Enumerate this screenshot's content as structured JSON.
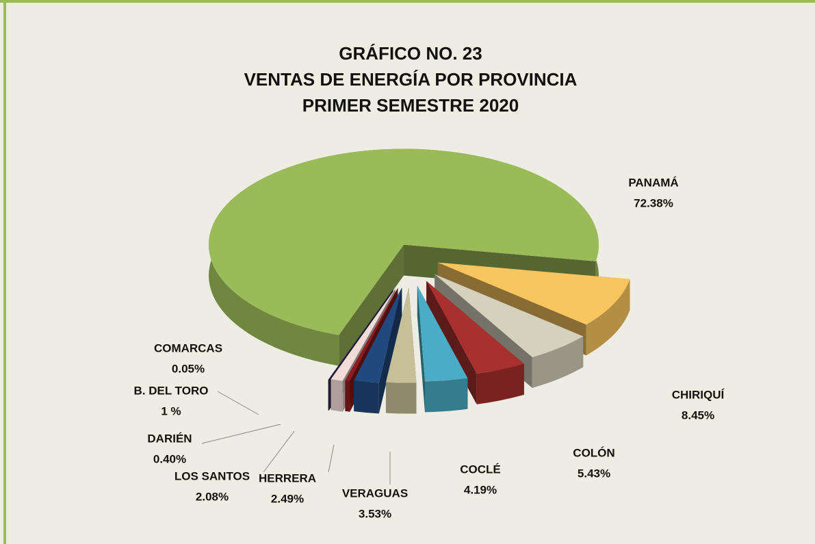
{
  "chart_data": {
    "type": "pie3d",
    "title": [
      "GRÁFICO NO.  23",
      "VENTAS DE ENERGÍA POR PROVINCIA",
      "PRIMER  SEMESTRE  2020"
    ],
    "categories": [
      "PANAMÁ",
      "CHIRIQUÍ",
      "COLÓN",
      "COCLÉ",
      "VERAGUAS",
      "HERRERA",
      "LOS SANTOS",
      "DARIÉN",
      "B. DEL TORO",
      "COMARCAS"
    ],
    "values": [
      72.38,
      8.45,
      5.43,
      4.19,
      3.53,
      2.49,
      2.08,
      0.4,
      1,
      0.05
    ],
    "value_labels": [
      "72.38%",
      "8.45%",
      "5.43%",
      "4.19%",
      "3.53%",
      "2.49%",
      "2.08%",
      "0.40%",
      "1 %",
      "0.05%"
    ],
    "colors": [
      "#9bbb59",
      "#f9c55e",
      "#d4d1bd",
      "#a8302e",
      "#4bacc6",
      "#c6bf98",
      "#21497f",
      "#8e1c1f",
      "#f2dcd8",
      "#3a2d5a"
    ]
  }
}
